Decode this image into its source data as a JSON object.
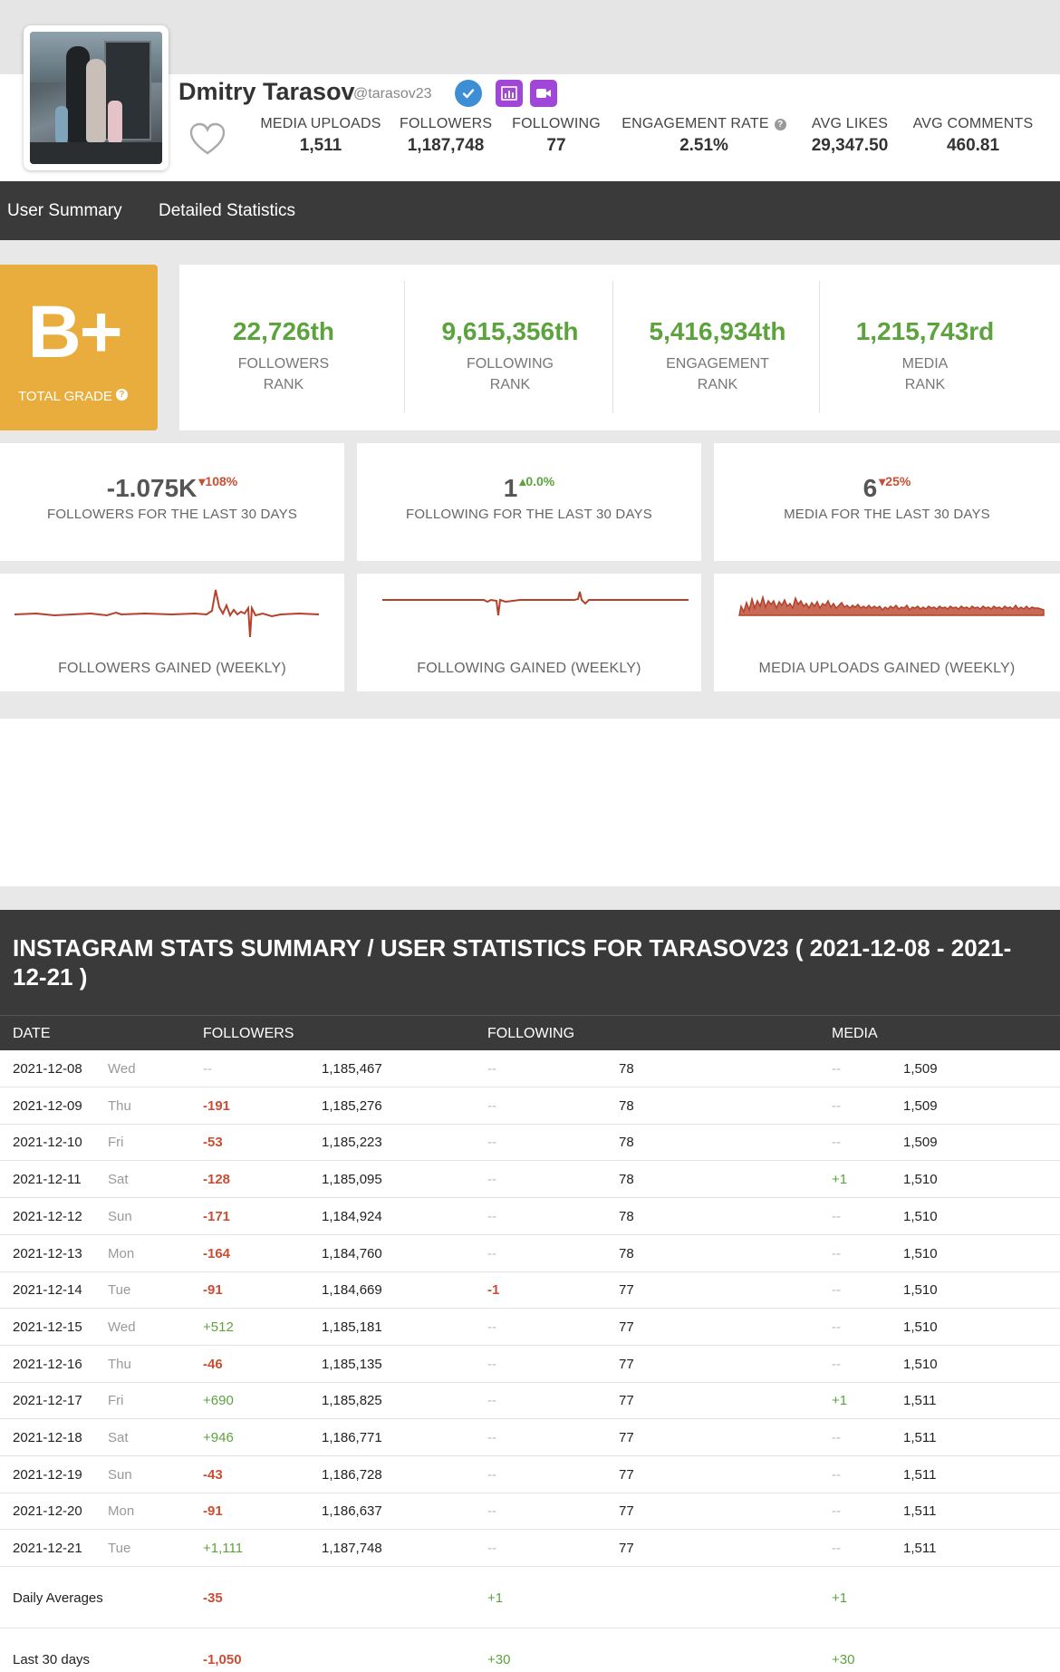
{
  "profile": {
    "name": "Dmitry Tarasov",
    "handle": "@tarasov23",
    "stats": [
      {
        "label": "MEDIA UPLOADS",
        "value": "1,511"
      },
      {
        "label": "FOLLOWERS",
        "value": "1,187,748"
      },
      {
        "label": "FOLLOWING",
        "value": "77"
      },
      {
        "label": "ENGAGEMENT RATE",
        "value": "2.51%"
      },
      {
        "label": "AVG LIKES",
        "value": "29,347.50"
      },
      {
        "label": "AVG COMMENTS",
        "value": "460.81"
      }
    ],
    "badges": [
      "verified-icon",
      "bar-chart-icon",
      "video-icon"
    ]
  },
  "nav": {
    "items": [
      "User Summary",
      "Detailed Statistics"
    ]
  },
  "grade": {
    "letter": "B+",
    "label": "TOTAL GRADE"
  },
  "ranks": [
    {
      "value": "22,726th",
      "label1": "FOLLOWERS",
      "label2": "RANK"
    },
    {
      "value": "9,615,356th",
      "label1": "FOLLOWING",
      "label2": "RANK"
    },
    {
      "value": "5,416,934th",
      "label1": "ENGAGEMENT",
      "label2": "RANK"
    },
    {
      "value": "1,215,743rd",
      "label1": "MEDIA",
      "label2": "RANK"
    }
  ],
  "last30": [
    {
      "value": "-1.075K",
      "delta": "108%",
      "direction": "down",
      "label": "FOLLOWERS FOR THE LAST 30 DAYS"
    },
    {
      "value": "1",
      "delta": "0.0%",
      "direction": "up",
      "label": "FOLLOWING FOR THE LAST 30 DAYS"
    },
    {
      "value": "6",
      "delta": "25%",
      "direction": "down",
      "label": "MEDIA FOR THE LAST 30 DAYS"
    }
  ],
  "sparks": [
    {
      "label": "FOLLOWERS GAINED (WEEKLY)"
    },
    {
      "label": "FOLLOWING GAINED (WEEKLY)"
    },
    {
      "label": "MEDIA UPLOADS GAINED (WEEKLY)"
    }
  ],
  "colors": {
    "accent_green": "#5da33d",
    "accent_red": "#c84f33",
    "grade_orange": "#e8ad3c",
    "dark_bar": "#3a3a3a",
    "spark_line": "#b5412b"
  },
  "table": {
    "title": "INSTAGRAM STATS SUMMARY / USER STATISTICS FOR TARASOV23 ( 2021-12-08 - 2021-12-21 )",
    "columns": [
      "DATE",
      "FOLLOWERS",
      "FOLLOWING",
      "MEDIA"
    ],
    "rows": [
      {
        "date": "2021-12-08",
        "day": "Wed",
        "f_change": "--",
        "followers": "1,185,467",
        "g_change": "--",
        "following": "78",
        "m_change": "--",
        "media": "1,509"
      },
      {
        "date": "2021-12-09",
        "day": "Thu",
        "f_change": "-191",
        "followers": "1,185,276",
        "g_change": "--",
        "following": "78",
        "m_change": "--",
        "media": "1,509"
      },
      {
        "date": "2021-12-10",
        "day": "Fri",
        "f_change": "-53",
        "followers": "1,185,223",
        "g_change": "--",
        "following": "78",
        "m_change": "--",
        "media": "1,509"
      },
      {
        "date": "2021-12-11",
        "day": "Sat",
        "f_change": "-128",
        "followers": "1,185,095",
        "g_change": "--",
        "following": "78",
        "m_change": "+1",
        "media": "1,510"
      },
      {
        "date": "2021-12-12",
        "day": "Sun",
        "f_change": "-171",
        "followers": "1,184,924",
        "g_change": "--",
        "following": "78",
        "m_change": "--",
        "media": "1,510"
      },
      {
        "date": "2021-12-13",
        "day": "Mon",
        "f_change": "-164",
        "followers": "1,184,760",
        "g_change": "--",
        "following": "78",
        "m_change": "--",
        "media": "1,510"
      },
      {
        "date": "2021-12-14",
        "day": "Tue",
        "f_change": "-91",
        "followers": "1,184,669",
        "g_change": "-1",
        "following": "77",
        "m_change": "--",
        "media": "1,510"
      },
      {
        "date": "2021-12-15",
        "day": "Wed",
        "f_change": "+512",
        "followers": "1,185,181",
        "g_change": "--",
        "following": "77",
        "m_change": "--",
        "media": "1,510"
      },
      {
        "date": "2021-12-16",
        "day": "Thu",
        "f_change": "-46",
        "followers": "1,185,135",
        "g_change": "--",
        "following": "77",
        "m_change": "--",
        "media": "1,510"
      },
      {
        "date": "2021-12-17",
        "day": "Fri",
        "f_change": "+690",
        "followers": "1,185,825",
        "g_change": "--",
        "following": "77",
        "m_change": "+1",
        "media": "1,511"
      },
      {
        "date": "2021-12-18",
        "day": "Sat",
        "f_change": "+946",
        "followers": "1,186,771",
        "g_change": "--",
        "following": "77",
        "m_change": "--",
        "media": "1,511"
      },
      {
        "date": "2021-12-19",
        "day": "Sun",
        "f_change": "-43",
        "followers": "1,186,728",
        "g_change": "--",
        "following": "77",
        "m_change": "--",
        "media": "1,511"
      },
      {
        "date": "2021-12-20",
        "day": "Mon",
        "f_change": "-91",
        "followers": "1,186,637",
        "g_change": "--",
        "following": "77",
        "m_change": "--",
        "media": "1,511"
      },
      {
        "date": "2021-12-21",
        "day": "Tue",
        "f_change": "+1,111",
        "followers": "1,187,748",
        "g_change": "--",
        "following": "77",
        "m_change": "--",
        "media": "1,511"
      }
    ],
    "summary": [
      {
        "label": "Daily Averages",
        "followers": "-35",
        "following": "+1",
        "media": "+1"
      },
      {
        "label": "Last 30 days",
        "followers": "-1,050",
        "following": "+30",
        "media": "+30"
      }
    ]
  }
}
